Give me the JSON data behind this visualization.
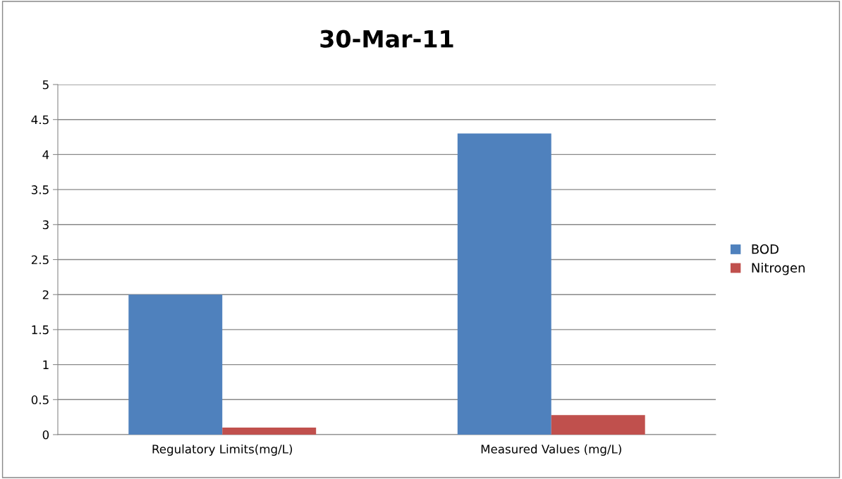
{
  "chart_data": {
    "type": "bar",
    "title": "30-Mar-11",
    "categories": [
      "Regulatory Limits(mg/L)",
      "Measured Values (mg/L)"
    ],
    "series": [
      {
        "name": "BOD",
        "color": "#4f81bd",
        "values": [
          2.0,
          4.3
        ]
      },
      {
        "name": "Nitrogen",
        "color": "#c0504d",
        "values": [
          0.1,
          0.28
        ]
      }
    ],
    "ylim": [
      0,
      5
    ],
    "yticks": [
      0,
      0.5,
      1,
      1.5,
      2,
      2.5,
      3,
      3.5,
      4,
      4.5,
      5
    ],
    "grid": "y",
    "legend": "right"
  }
}
